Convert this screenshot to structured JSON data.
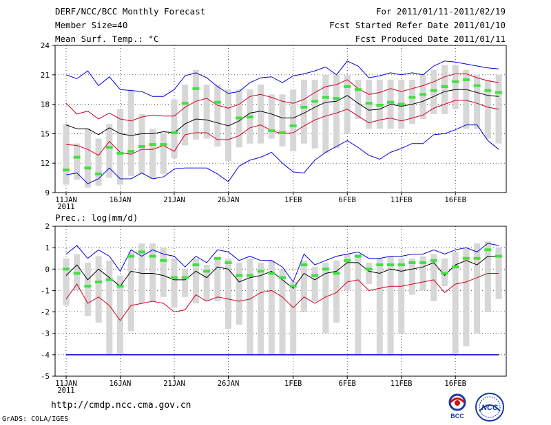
{
  "header": {
    "title": "DERF/NCC/BCC Monthly Forecast",
    "member_size": "Member Size=40",
    "variable": "Mean Surf. Temp.: °C",
    "period": "For 2011/01/11-2011/02/19",
    "started": "Fcst Started Refer Date 2011/01/10",
    "produced": "Fcst Produced Date 2011/01/11"
  },
  "footer": {
    "url": "http://cmdp.ncc.cma.gov.cn",
    "credit": "GrADS: COLA/IGES",
    "logo_bcc": "BCC",
    "logo_ncc": "NCC"
  },
  "colors": {
    "box": "#d7d7d7",
    "mean": "#000000",
    "inner": "#d0001c",
    "outer": "#0000d8",
    "obs": "#40e040",
    "grid": "#000000"
  },
  "chart_data": [
    {
      "type": "line",
      "title": "Mean Surf. Temp.: °C",
      "ylim": [
        9,
        24
      ],
      "yticks": [
        9,
        12,
        15,
        18,
        21,
        24
      ],
      "xtick_labels": [
        "11JAN",
        "16JAN",
        "21JAN",
        "26JAN",
        "1FEB",
        "6FEB",
        "11FEB",
        "16FEB"
      ],
      "xtick_index": [
        0,
        5,
        10,
        15,
        21,
        26,
        31,
        36
      ],
      "year_label": "2011",
      "series": [
        {
          "name": "mean",
          "values": [
            15.9,
            15.5,
            15.5,
            14.9,
            15.6,
            15.0,
            14.8,
            15.0,
            15.0,
            15.2,
            15.1,
            16.0,
            16.5,
            16.4,
            16.1,
            15.8,
            16.3,
            17.1,
            17.3,
            17.0,
            16.6,
            16.6,
            17.1,
            17.7,
            18.2,
            18.3,
            18.9,
            18.1,
            17.4,
            17.5,
            18.0,
            17.8,
            18.0,
            18.3,
            18.8,
            19.3,
            19.5,
            19.5,
            19.2,
            18.9,
            18.8
          ]
        },
        {
          "name": "upper_red",
          "values": [
            18.1,
            17.0,
            17.3,
            16.5,
            17.1,
            16.5,
            16.3,
            16.7,
            16.9,
            16.8,
            16.8,
            17.7,
            18.3,
            18.6,
            17.9,
            17.6,
            18.0,
            18.8,
            19.0,
            18.7,
            18.3,
            18.1,
            18.5,
            19.2,
            19.8,
            20.0,
            20.5,
            19.6,
            19.0,
            19.2,
            19.6,
            19.3,
            19.6,
            19.9,
            20.3,
            20.8,
            21.1,
            21.1,
            20.7,
            20.4,
            20.2
          ]
        },
        {
          "name": "lower_red",
          "values": [
            13.9,
            13.8,
            13.4,
            12.8,
            14.2,
            13.1,
            12.9,
            13.4,
            13.4,
            13.8,
            13.2,
            14.9,
            15.1,
            15.1,
            14.4,
            14.4,
            14.8,
            15.6,
            15.9,
            15.3,
            15.0,
            15.1,
            15.8,
            16.4,
            16.8,
            17.1,
            17.5,
            16.8,
            16.1,
            16.4,
            16.6,
            16.3,
            16.6,
            16.9,
            17.6,
            18.0,
            18.4,
            18.4,
            18.1,
            17.7,
            17.5
          ]
        },
        {
          "name": "upper_blue",
          "values": [
            21.0,
            20.6,
            21.4,
            19.9,
            20.8,
            19.5,
            19.4,
            19.3,
            18.8,
            18.8,
            19.5,
            20.9,
            21.2,
            20.7,
            19.8,
            19.1,
            19.3,
            20.2,
            20.7,
            20.8,
            20.2,
            20.9,
            21.1,
            21.4,
            21.8,
            21.0,
            22.4,
            21.9,
            20.7,
            20.9,
            21.2,
            21.0,
            21.2,
            21.0,
            21.9,
            22.4,
            22.3,
            22.1,
            21.9,
            21.7,
            21.6
          ]
        },
        {
          "name": "lower_blue",
          "values": [
            10.8,
            11.0,
            9.9,
            10.4,
            11.5,
            10.4,
            10.4,
            11.0,
            10.4,
            10.6,
            11.4,
            11.5,
            11.5,
            11.5,
            10.9,
            10.1,
            11.7,
            12.3,
            12.6,
            13.1,
            12.0,
            11.1,
            11.0,
            12.3,
            13.1,
            13.7,
            14.3,
            13.6,
            12.8,
            12.4,
            13.1,
            13.5,
            14.0,
            14.0,
            14.9,
            15.0,
            15.4,
            15.9,
            15.9,
            14.3,
            13.4
          ]
        },
        {
          "name": "observed",
          "values": [
            11.3,
            12.6,
            11.5,
            10.9,
            13.6,
            13.0,
            13.2,
            13.7,
            13.9,
            13.9,
            15.1,
            18.1,
            19.6,
            null,
            18.2,
            null,
            16.6,
            16.7,
            null,
            15.3,
            15.1,
            15.8,
            17.7,
            18.3,
            18.7,
            18.6,
            19.8,
            19.5,
            18.1,
            17.9,
            18.2,
            18.0,
            18.7,
            19.0,
            19.4,
            19.8,
            20.3,
            20.5,
            19.9,
            19.4,
            19.2
          ]
        },
        {
          "name": "box_max",
          "values": [
            16.0,
            14.0,
            15.5,
            14.5,
            16.0,
            17.5,
            19.5,
            17.0,
            15.5,
            15.0,
            18.5,
            20.0,
            21.5,
            20.0,
            20.0,
            19.5,
            19.5,
            19.5,
            20.0,
            19.0,
            19.0,
            19.5,
            20.5,
            20.5,
            21.0,
            21.0,
            21.0,
            20.5,
            20.5,
            20.5,
            20.5,
            20.5,
            20.5,
            21.0,
            21.5,
            22.0,
            22.0,
            21.5,
            21.0,
            20.5,
            21.0
          ]
        },
        {
          "name": "box_min",
          "values": [
            9.8,
            10.3,
            9.5,
            9.7,
            10.5,
            9.8,
            10.7,
            11.0,
            10.4,
            10.9,
            12.5,
            13.8,
            14.4,
            14.5,
            13.7,
            12.2,
            13.6,
            14.0,
            14.0,
            14.5,
            13.7,
            13.2,
            14.0,
            13.5,
            13.0,
            13.5,
            15.0,
            16.5,
            15.5,
            15.5,
            15.5,
            15.5,
            16.0,
            16.5,
            17.0,
            17.0,
            17.5,
            15.5,
            15.5,
            14.5,
            14.0
          ]
        }
      ]
    },
    {
      "type": "line",
      "title": "Prec.: log(mm/d)",
      "ylim": [
        -5,
        2
      ],
      "yticks": [
        -5,
        -4,
        -3,
        -2,
        -1,
        0,
        1,
        2
      ],
      "xtick_labels": [
        "11JAN",
        "16JAN",
        "21JAN",
        "26JAN",
        "1FEB",
        "6FEB",
        "11FEB",
        "16FEB"
      ],
      "xtick_index": [
        0,
        5,
        10,
        15,
        21,
        26,
        31,
        36
      ],
      "year_label": "2011",
      "series": [
        {
          "name": "mean",
          "values": [
            -0.3,
            0.2,
            -0.5,
            0.0,
            -0.4,
            -0.8,
            -0.1,
            -0.2,
            -0.2,
            -0.3,
            -0.5,
            -0.5,
            -0.1,
            -0.4,
            0.1,
            0.0,
            -0.6,
            -0.4,
            -0.3,
            -0.1,
            -0.5,
            -0.9,
            -0.2,
            -0.5,
            -0.2,
            -0.1,
            0.3,
            0.3,
            -0.1,
            -0.2,
            0.0,
            -0.1,
            0.0,
            0.1,
            0.3,
            -0.3,
            0.2,
            0.4,
            0.2,
            0.6,
            0.6
          ]
        },
        {
          "name": "lower_red",
          "values": [
            -1.4,
            -0.7,
            -1.6,
            -1.3,
            -1.7,
            -2.4,
            -1.7,
            -1.6,
            -1.5,
            -1.6,
            -2.0,
            -1.9,
            -1.2,
            -1.5,
            -1.3,
            -1.4,
            -1.5,
            -1.4,
            -1.1,
            -1.0,
            -1.3,
            -1.8,
            -1.3,
            -1.6,
            -1.3,
            -1.1,
            -0.6,
            -0.5,
            -1.0,
            -0.9,
            -0.8,
            -0.8,
            -0.7,
            -0.6,
            -0.5,
            -1.1,
            -0.7,
            -0.6,
            -0.4,
            -0.2,
            -0.2
          ]
        },
        {
          "name": "upper_blue",
          "values": [
            0.7,
            1.1,
            0.5,
            0.9,
            0.6,
            -0.1,
            0.9,
            0.6,
            0.9,
            0.7,
            0.6,
            0.1,
            0.6,
            0.3,
            0.9,
            0.8,
            0.4,
            0.6,
            0.4,
            0.4,
            0.1,
            -0.6,
            0.7,
            0.2,
            0.4,
            0.6,
            0.7,
            0.8,
            0.5,
            0.5,
            0.6,
            0.6,
            0.7,
            0.7,
            0.9,
            0.7,
            0.9,
            1.0,
            0.8,
            1.2,
            1.1
          ]
        },
        {
          "name": "lower_blue",
          "values": [
            -4,
            -4,
            -4,
            -4,
            -4,
            -4,
            -4,
            -4,
            -4,
            -4,
            -4,
            -4,
            -4,
            -4,
            -4,
            -4,
            -4,
            -4,
            -4,
            -4,
            -4,
            -4,
            -4,
            -4,
            -4,
            -4,
            -4,
            -4,
            -4,
            -4,
            -4,
            -4,
            -4,
            -4,
            -4,
            -4,
            -4,
            -4,
            -4,
            -4,
            -4
          ]
        },
        {
          "name": "observed",
          "values": [
            0.0,
            -0.2,
            -0.8,
            -0.6,
            -0.5,
            -0.8,
            0.6,
            0.8,
            0.6,
            0.4,
            -0.4,
            -0.4,
            0.2,
            -0.1,
            0.5,
            0.3,
            -0.3,
            -0.3,
            -0.1,
            -0.2,
            -0.4,
            -0.8,
            0.2,
            -0.3,
            0.0,
            -0.2,
            0.4,
            0.6,
            0.0,
            0.2,
            0.2,
            0.2,
            0.3,
            0.3,
            0.4,
            -0.2,
            0.1,
            0.5,
            0.5,
            0.9,
            0.6
          ]
        },
        {
          "name": "box_max",
          "values": [
            0.5,
            0.7,
            0.3,
            0.6,
            0.4,
            -0.3,
            0.8,
            1.2,
            1.2,
            1.0,
            0.5,
            0.0,
            0.5,
            0.2,
            0.5,
            0.5,
            0.3,
            0.5,
            0.3,
            0.4,
            0.0,
            -0.6,
            0.4,
            0.1,
            0.3,
            0.4,
            0.7,
            0.7,
            0.3,
            0.5,
            0.6,
            0.5,
            0.5,
            0.6,
            0.7,
            0.5,
            0.8,
            1.0,
            1.2,
            1.3,
            1.0
          ]
        },
        {
          "name": "box_min",
          "values": [
            -1.7,
            -1.0,
            -2.2,
            -2.5,
            -4.0,
            -4.0,
            -2.9,
            -1.6,
            -1.5,
            -1.3,
            -1.8,
            -1.3,
            -1.6,
            -1.5,
            -1.5,
            -2.8,
            -2.6,
            -4.0,
            -4.0,
            -4.0,
            -4.0,
            -4.0,
            -2.0,
            -1.5,
            -3.0,
            -2.5,
            -1.0,
            -4.0,
            -0.7,
            -4.0,
            -4.0,
            -3.0,
            -1.2,
            -1.0,
            -1.5,
            -0.8,
            -4.0,
            -3.6,
            -3.0,
            -2.0,
            -1.4
          ]
        }
      ]
    }
  ]
}
